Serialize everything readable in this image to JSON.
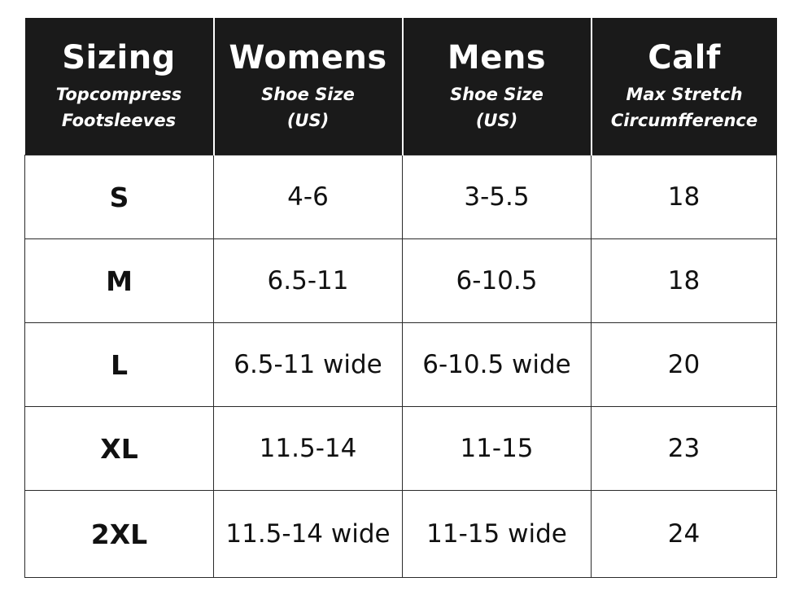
{
  "header": [
    {
      "title": "Sizing",
      "subtitle": "Topcompress\nFootsleeves"
    },
    {
      "title": "Womens",
      "subtitle": "Shoe Size\n(US)"
    },
    {
      "title": "Mens",
      "subtitle": "Shoe Size\n(US)"
    },
    {
      "title": "Calf",
      "subtitle": "Max Stretch\nCircumfference"
    }
  ],
  "rows": [
    {
      "size": "S",
      "womens": "4-6",
      "mens": "3-5.5",
      "calf": "18"
    },
    {
      "size": "M",
      "womens": "6.5-11",
      "mens": "6-10.5",
      "calf": "18"
    },
    {
      "size": "L",
      "womens": "6.5-11 wide",
      "mens": "6-10.5 wide",
      "calf": "20"
    },
    {
      "size": "XL",
      "womens": "11.5-14",
      "mens": "11-15",
      "calf": "23"
    },
    {
      "size": "2XL",
      "womens": "11.5-14 wide",
      "mens": "11-15 wide",
      "calf": "24"
    }
  ],
  "colors": {
    "header_bg": "#1a1a1a",
    "header_text": "#ffffff",
    "cell_text": "#111111",
    "border": "#2a2a2a"
  }
}
